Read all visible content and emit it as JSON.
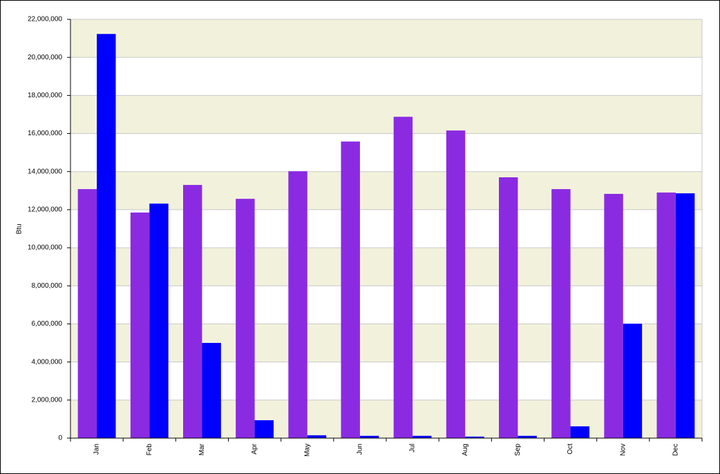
{
  "chart_data": {
    "type": "bar",
    "y_label": "Btu",
    "categories": [
      "Jan",
      "Feb",
      "Mar",
      "Apr",
      "May",
      "Jun",
      "Jul",
      "Aug",
      "Sep",
      "Oct",
      "Nov",
      "Dec"
    ],
    "series": [
      {
        "color": "#8a2be2",
        "values": [
          13080000,
          11850000,
          13300000,
          12570000,
          14020000,
          15580000,
          16880000,
          16160000,
          13700000,
          13080000,
          12830000,
          12900000
        ]
      },
      {
        "color": "#0000ff",
        "values": [
          21230000,
          12320000,
          5000000,
          940000,
          150000,
          120000,
          120000,
          80000,
          120000,
          620000,
          6010000,
          12860000
        ]
      }
    ],
    "ylim": [
      0,
      22000000
    ],
    "yticks": [
      0,
      {
        "value": 2000000,
        "label": "2,000,000"
      },
      {
        "value": 4000000,
        "label": "4,000,000"
      },
      {
        "value": 6000000,
        "label": "6,000,000"
      },
      {
        "value": 8000000,
        "label": "8,000,000"
      },
      {
        "value": 10000000,
        "label": "10,000,000"
      },
      {
        "value": 12000000,
        "label": "12,000,000"
      },
      {
        "value": 14000000,
        "label": "14,000,000"
      },
      {
        "value": 16000000,
        "label": "16,000,000"
      },
      {
        "value": 18000000,
        "label": "18,000,000"
      },
      {
        "value": 20000000,
        "label": "20,000,000"
      },
      {
        "value": 22000000,
        "label": "22,000,000"
      }
    ],
    "grid": true
  }
}
